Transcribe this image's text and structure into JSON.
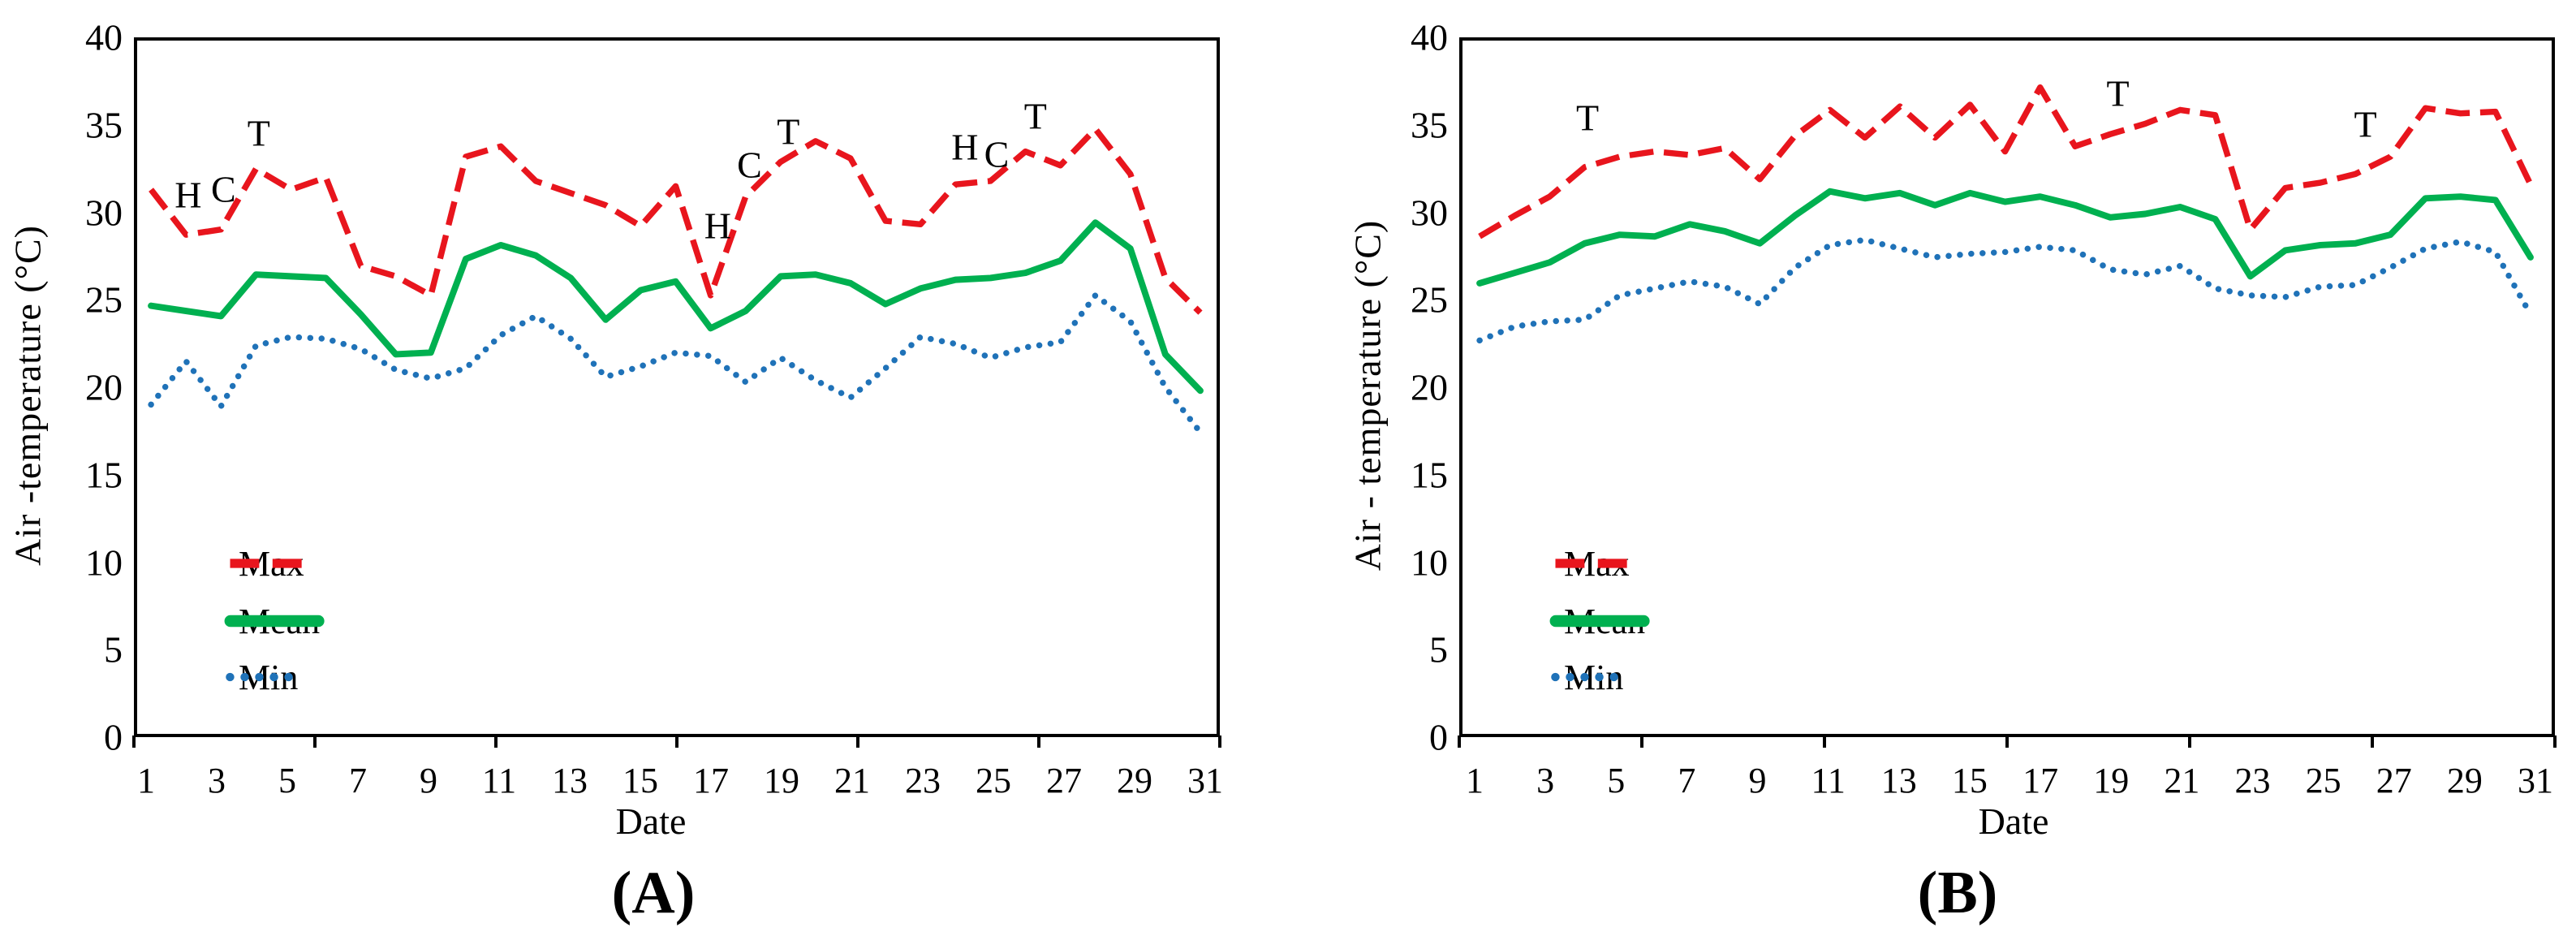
{
  "page": {
    "background": "#ffffff"
  },
  "chart_data": [
    {
      "id": "A",
      "type": "line",
      "caption": "(A)",
      "xlabel": "Date",
      "ylabel": "Air -temperature (°C)",
      "ylim": [
        0,
        40
      ],
      "y_ticks": [
        0,
        5,
        10,
        15,
        20,
        25,
        30,
        35,
        40
      ],
      "x_ticks": [
        1,
        3,
        5,
        7,
        9,
        11,
        13,
        15,
        17,
        19,
        21,
        23,
        25,
        27,
        29,
        31
      ],
      "x": [
        1,
        2,
        3,
        4,
        5,
        6,
        7,
        8,
        9,
        10,
        11,
        12,
        13,
        14,
        15,
        16,
        17,
        18,
        19,
        20,
        21,
        22,
        23,
        24,
        25,
        26,
        27,
        28,
        29,
        30,
        31
      ],
      "grid": false,
      "legend_position": "inside-lower-left",
      "series": [
        {
          "name": "Max",
          "color": "#e8151d",
          "style": "dashed",
          "values": [
            31.4,
            28.8,
            29.1,
            32.6,
            31.4,
            32.1,
            27.0,
            26.4,
            25.3,
            33.3,
            33.9,
            31.9,
            31.2,
            30.5,
            29.3,
            31.6,
            25.3,
            31.0,
            33.0,
            34.2,
            33.2,
            29.6,
            29.4,
            31.7,
            31.9,
            33.6,
            32.8,
            34.9,
            32.3,
            26.3,
            24.3
          ]
        },
        {
          "name": "Mean",
          "color": "#00b050",
          "style": "solid",
          "values": [
            24.7,
            24.4,
            24.1,
            26.5,
            26.4,
            26.3,
            24.2,
            21.9,
            22.0,
            27.4,
            28.2,
            27.6,
            26.3,
            23.9,
            25.6,
            26.1,
            23.4,
            24.4,
            26.4,
            26.5,
            26.0,
            24.8,
            25.7,
            26.2,
            26.3,
            26.6,
            27.3,
            29.5,
            28.0,
            21.9,
            19.8
          ]
        },
        {
          "name": "Min",
          "color": "#1f72b8",
          "style": "dotted",
          "values": [
            19.0,
            21.5,
            18.9,
            22.4,
            22.9,
            22.8,
            22.2,
            21.0,
            20.5,
            21.1,
            23.0,
            24.1,
            22.8,
            20.6,
            21.2,
            22.0,
            21.8,
            20.3,
            21.7,
            20.4,
            19.4,
            21.1,
            22.9,
            22.5,
            21.7,
            22.3,
            22.6,
            25.3,
            23.8,
            20.0,
            17.4
          ]
        }
      ],
      "annotations": [
        {
          "label": "H",
          "x": 2.1,
          "y": 31.2
        },
        {
          "label": "C",
          "x": 3.1,
          "y": 31.5
        },
        {
          "label": "T",
          "x": 4.1,
          "y": 34.7
        },
        {
          "label": "H",
          "x": 17.1,
          "y": 29.4
        },
        {
          "label": "C",
          "x": 18.0,
          "y": 32.9
        },
        {
          "label": "T",
          "x": 19.1,
          "y": 34.8
        },
        {
          "label": "H",
          "x": 24.1,
          "y": 33.9
        },
        {
          "label": "C",
          "x": 25.0,
          "y": 33.5
        },
        {
          "label": "T",
          "x": 26.1,
          "y": 35.7
        }
      ]
    },
    {
      "id": "B",
      "type": "line",
      "caption": "(B)",
      "xlabel": "Date",
      "ylabel": "Air - temperature (°C)",
      "ylim": [
        0,
        40
      ],
      "y_ticks": [
        0,
        5,
        10,
        15,
        20,
        25,
        30,
        35,
        40
      ],
      "x_ticks": [
        1,
        3,
        5,
        7,
        9,
        11,
        13,
        15,
        17,
        19,
        21,
        23,
        25,
        27,
        29,
        31
      ],
      "x": [
        1,
        2,
        3,
        4,
        5,
        6,
        7,
        8,
        9,
        10,
        11,
        12,
        13,
        14,
        15,
        16,
        17,
        18,
        19,
        20,
        21,
        22,
        23,
        24,
        25,
        26,
        27,
        28,
        29,
        30,
        31
      ],
      "grid": false,
      "legend_position": "inside-lower-left",
      "series": [
        {
          "name": "Max",
          "color": "#e8151d",
          "style": "dashed",
          "values": [
            28.7,
            29.9,
            31.0,
            32.7,
            33.3,
            33.6,
            33.4,
            33.8,
            32.0,
            34.5,
            36.0,
            34.4,
            36.2,
            34.4,
            36.3,
            33.6,
            37.3,
            33.9,
            34.6,
            35.2,
            36.0,
            35.7,
            29.1,
            31.5,
            31.8,
            32.3,
            33.3,
            36.1,
            35.8,
            35.9,
            31.7
          ]
        },
        {
          "name": "Mean",
          "color": "#00b050",
          "style": "solid",
          "values": [
            26.0,
            26.6,
            27.2,
            28.3,
            28.8,
            28.7,
            29.4,
            29.0,
            28.3,
            29.9,
            31.3,
            30.9,
            31.2,
            30.5,
            31.2,
            30.7,
            31.0,
            30.5,
            29.8,
            30.0,
            30.4,
            29.7,
            26.4,
            27.9,
            28.2,
            28.3,
            28.8,
            30.9,
            31.0,
            30.8,
            27.5
          ]
        },
        {
          "name": "Min",
          "color": "#1f72b8",
          "style": "dotted",
          "values": [
            22.7,
            23.5,
            23.8,
            23.9,
            25.3,
            25.7,
            26.1,
            25.8,
            24.8,
            26.9,
            28.2,
            28.5,
            28.0,
            27.5,
            27.7,
            27.8,
            28.1,
            27.9,
            26.8,
            26.5,
            27.0,
            25.7,
            25.3,
            25.2,
            25.8,
            25.9,
            26.9,
            28.0,
            28.4,
            27.8,
            24.2
          ]
        }
      ],
      "annotations": [
        {
          "label": "T",
          "x": 4.1,
          "y": 35.6
        },
        {
          "label": "T",
          "x": 19.1,
          "y": 37.0
        },
        {
          "label": "T",
          "x": 26.1,
          "y": 35.2
        }
      ]
    }
  ]
}
